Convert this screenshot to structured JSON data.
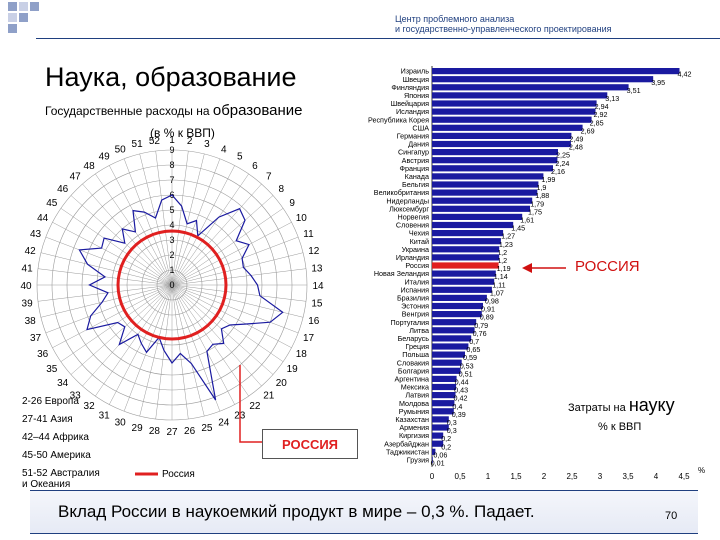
{
  "header": {
    "line1": "Центр проблемного анализа",
    "line2": "и государственно-управленческого проектирования"
  },
  "page_title": "Наука, образование",
  "radar": {
    "title_part1": "Государственные  расходы на",
    "title_part2": "образование",
    "title_line2": "(в % к ВВП)",
    "legend": {
      "europe": "2-26 Европа",
      "asia": "27-41 Азия",
      "africa": "42–44 Африка",
      "america": "45-50 Америка",
      "australia_line1": "51-52 Австралия",
      "australia_line2": "и Океания",
      "russia_series": "Россия"
    },
    "russia_box": "РОССИЯ"
  },
  "bar_section": {
    "russia_label": "РОССИЯ",
    "cost_label_small": "Затраты на",
    "cost_label_big": "науку",
    "cost_label_unit": "% к ВВП"
  },
  "footer": {
    "text": "Вклад России в наукоемкий продукт в мире – 0,3 %. Падает.",
    "page_number": "70"
  },
  "colors": {
    "bar": "#1a1aa0",
    "russia": "#e02020",
    "header": "#1f3f7f"
  },
  "chart_data": [
    {
      "type": "radar",
      "spoke_labels": [
        "1",
        "2",
        "3",
        "4",
        "5",
        "6",
        "7",
        "8",
        "9",
        "10",
        "11",
        "12",
        "13",
        "14",
        "15",
        "16",
        "17",
        "18",
        "19",
        "20",
        "21",
        "22",
        "23",
        "24",
        "25",
        "26",
        "27",
        "28",
        "29",
        "30",
        "31",
        "32",
        "33",
        "34",
        "35",
        "36",
        "37",
        "38",
        "39",
        "40",
        "41",
        "42",
        "43",
        "44",
        "45",
        "46",
        "47",
        "48",
        "49",
        "50",
        "51",
        "52"
      ],
      "radial_ticks": [
        "0",
        "1",
        "2",
        "3",
        "4",
        "5",
        "6",
        "7",
        "8",
        "9"
      ],
      "rlim": [
        0,
        9
      ],
      "series": [
        {
          "values": [
            6.0,
            5.3,
            4.2,
            4.6,
            3.7,
            5.5,
            6.8,
            6.5,
            5.2,
            5.8,
            5.0,
            4.9,
            5.3,
            5.7,
            5.9,
            7.6,
            7.0,
            5.6,
            4.7,
            4.4,
            5.2,
            4.8,
            5.0,
            8.2,
            5.4,
            4.6,
            5.2,
            4.4,
            3.6,
            4.8,
            4.4,
            4.0,
            5.3,
            4.2,
            4.4,
            6.4,
            5.8,
            4.8,
            4.3,
            5.5,
            4.5,
            5.8,
            6.6,
            5.3,
            5.5,
            4.2,
            5.0,
            4.3,
            5.6,
            5.2,
            4.6,
            5.7
          ]
        },
        {
          "name": "Россия",
          "values": [
            3.6,
            3.6,
            3.6,
            3.6,
            3.6,
            3.6,
            3.6,
            3.6,
            3.6,
            3.6,
            3.6,
            3.6,
            3.6,
            3.6,
            3.6,
            3.6,
            3.6,
            3.6,
            3.6,
            3.6,
            3.6,
            3.6,
            3.6,
            3.6,
            3.6,
            3.6,
            3.6,
            3.6,
            3.6,
            3.6,
            3.6,
            3.6,
            3.6,
            3.6,
            3.6,
            3.6,
            3.6,
            3.6,
            3.6,
            3.6,
            3.6,
            3.6,
            3.6,
            3.6,
            3.6,
            3.6,
            3.6,
            3.6,
            3.6,
            3.6,
            3.6,
            3.6
          ]
        }
      ]
    },
    {
      "type": "bar",
      "orientation": "horizontal",
      "categories": [
        "Израиль",
        "Швеция",
        "Финляндия",
        "Япония",
        "Швейцария",
        "Исландия",
        "Республика Корея",
        "США",
        "Германия",
        "Дания",
        "Сингапур",
        "Австрия",
        "Франция",
        "Канада",
        "Бельгия",
        "Великобритания",
        "Нидерланды",
        "Люксембург",
        "Норвегия",
        "Словения",
        "Чехия",
        "Китай",
        "Украина",
        "Ирландия",
        "Россия",
        "Новая Зеландия",
        "Италия",
        "Испания",
        "Бразилия",
        "Эстония",
        "Венгрия",
        "Португалия",
        "Литва",
        "Беларусь",
        "Греция",
        "Польша",
        "Словакия",
        "Болгария",
        "Аргентина",
        "Мексика",
        "Латвия",
        "Молдова",
        "Румыния",
        "Казахстан",
        "Армения",
        "Киргизия",
        "Азербайджан",
        "Таджикистан",
        "Грузия"
      ],
      "values": [
        4.42,
        3.95,
        3.51,
        3.13,
        2.94,
        2.92,
        2.85,
        2.69,
        2.49,
        2.48,
        2.25,
        2.24,
        2.16,
        1.99,
        1.9,
        1.88,
        1.79,
        1.75,
        1.61,
        1.45,
        1.27,
        1.23,
        1.2,
        1.2,
        1.19,
        1.14,
        1.11,
        1.07,
        0.98,
        0.91,
        0.89,
        0.79,
        0.76,
        0.7,
        0.65,
        0.59,
        0.53,
        0.51,
        0.44,
        0.43,
        0.42,
        0.4,
        0.39,
        0.3,
        0.3,
        0.2,
        0.2,
        0.06,
        0.01
      ],
      "value_labels": [
        "4,42",
        "3,95",
        "3,51",
        "3,13",
        "2,94",
        "2,92",
        "2,85",
        "2,69",
        "2,49",
        "2,48",
        "2,25",
        "2,24",
        "2,16",
        "1,99",
        "1,9",
        "1,88",
        "1,79",
        "1,75",
        "1,61",
        "1,45",
        "1,27",
        "1,23",
        "1,2",
        "1,2",
        "1,19",
        "1,14",
        "1,11",
        "1,07",
        "0,98",
        "0,91",
        "0,89",
        "0,79",
        "0,76",
        "0,7",
        "0,65",
        "0,59",
        "0,53",
        "0,51",
        "0,44",
        "0,43",
        "0,42",
        "0,4",
        "0,39",
        "0,3",
        "0,3",
        "0,2",
        "0,2",
        "0,06",
        "0,01"
      ],
      "highlight": "Россия",
      "x_ticks": [
        "0",
        "0,5",
        "1",
        "1,5",
        "2",
        "2,5",
        "3",
        "3,5",
        "4",
        "4,5"
      ],
      "x_tick_values": [
        0,
        0.5,
        1,
        1.5,
        2,
        2.5,
        3,
        3.5,
        4,
        4.5
      ],
      "x_unit": "%",
      "xlim": [
        0,
        4.5
      ]
    }
  ]
}
